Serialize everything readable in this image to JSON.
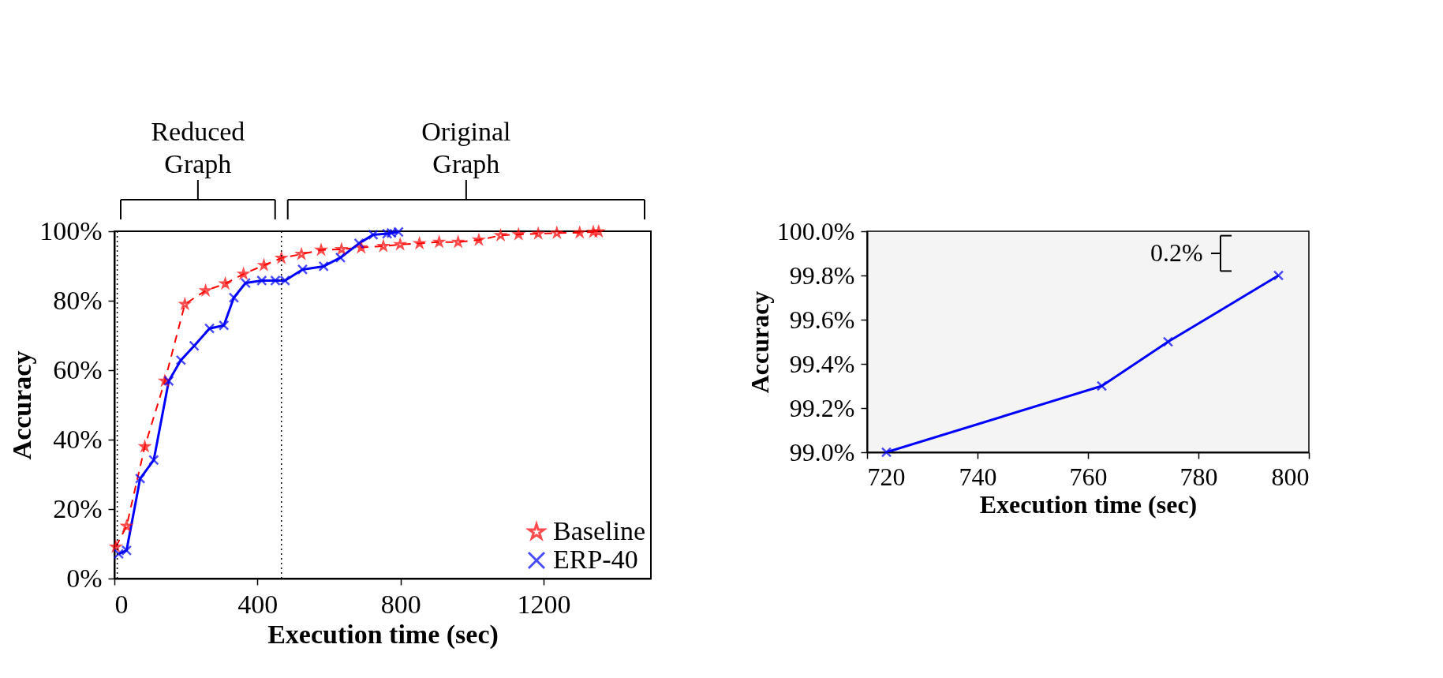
{
  "chart_data": [
    {
      "type": "line",
      "xlabel": "Execution time (sec)",
      "ylabel": "Accuracy",
      "xlim": [
        0,
        1500
      ],
      "xticks": [
        0,
        400,
        800,
        1200
      ],
      "ylim": [
        0,
        100
      ],
      "yticks": [
        {
          "value": 0,
          "label": "0%"
        },
        {
          "value": 20,
          "label": "20%"
        },
        {
          "value": 40,
          "label": "40%"
        },
        {
          "value": 60,
          "label": "60%"
        },
        {
          "value": 80,
          "label": "80%"
        },
        {
          "value": 100,
          "label": "100%"
        }
      ],
      "grid": false,
      "legend": "bottom right",
      "ref_lines": [
        {
          "axis": "x",
          "value": 8,
          "color": "#000000",
          "line_style": "dotted"
        },
        {
          "axis": "x",
          "value": 467,
          "color": "#000000",
          "line_style": "dotted"
        }
      ],
      "annotations": [
        "Reduced\nGraph",
        "Original\nGraph"
      ],
      "series": [
        {
          "name": "Baseline",
          "color": "#ff0000",
          "line_style": "dashed",
          "marker": "star",
          "x": [
            4,
            34,
            85,
            141,
            197,
            255,
            310,
            361,
            418,
            467,
            523,
            578,
            635,
            690,
            752,
            799,
            853,
            908,
            961,
            1019,
            1080,
            1130,
            1185,
            1237,
            1301,
            1339,
            1354
          ],
          "values": [
            9.1,
            15.1,
            38,
            56.9,
            79,
            82.9,
            84.9,
            87.7,
            90.2,
            92.3,
            93.4,
            94.6,
            94.8,
            95.3,
            95.7,
            96.2,
            96.5,
            96.9,
            96.9,
            97.5,
            98.8,
            99.1,
            99.3,
            99.5,
            99.6,
            99.8,
            99.9
          ]
        },
        {
          "name": "ERP-40",
          "color": "#0000ff",
          "line_style": "solid",
          "marker": "cross",
          "x": [
            12,
            34,
            72,
            110,
            152,
            186,
            223,
            266,
            306,
            334,
            367,
            412,
            450,
            477,
            526,
            585,
            632,
            684,
            723.5,
            762.5,
            774.5,
            794.5
          ],
          "values": [
            7.1,
            8.1,
            28.8,
            34.1,
            56.9,
            62.9,
            67,
            72,
            72.9,
            80.9,
            85.1,
            85.8,
            85.8,
            85.8,
            89,
            89.9,
            92.4,
            96.5,
            99.0,
            99.3,
            99.5,
            99.8
          ]
        }
      ]
    },
    {
      "type": "line",
      "xlabel": "Execution time (sec)",
      "ylabel": "Accuracy",
      "xlim": [
        720,
        800
      ],
      "xticks": [
        720,
        740,
        760,
        780,
        800
      ],
      "ylim": [
        99.0,
        100.0
      ],
      "yticks": [
        {
          "value": 99.0,
          "label": "99.0%"
        },
        {
          "value": 99.2,
          "label": "99.2%"
        },
        {
          "value": 99.4,
          "label": "99.4%"
        },
        {
          "value": 99.6,
          "label": "99.6%"
        },
        {
          "value": 99.8,
          "label": "99.8%"
        },
        {
          "value": 100.0,
          "label": "100.0%"
        }
      ],
      "grid": false,
      "annotations": [
        "0.2%"
      ],
      "series": [
        {
          "color": "#0000ff",
          "line_style": "solid",
          "marker": "cross",
          "x": [
            723.5,
            762.5,
            774.5,
            794.5
          ],
          "values": [
            99.0,
            99.3,
            99.5,
            99.8
          ]
        }
      ]
    }
  ]
}
